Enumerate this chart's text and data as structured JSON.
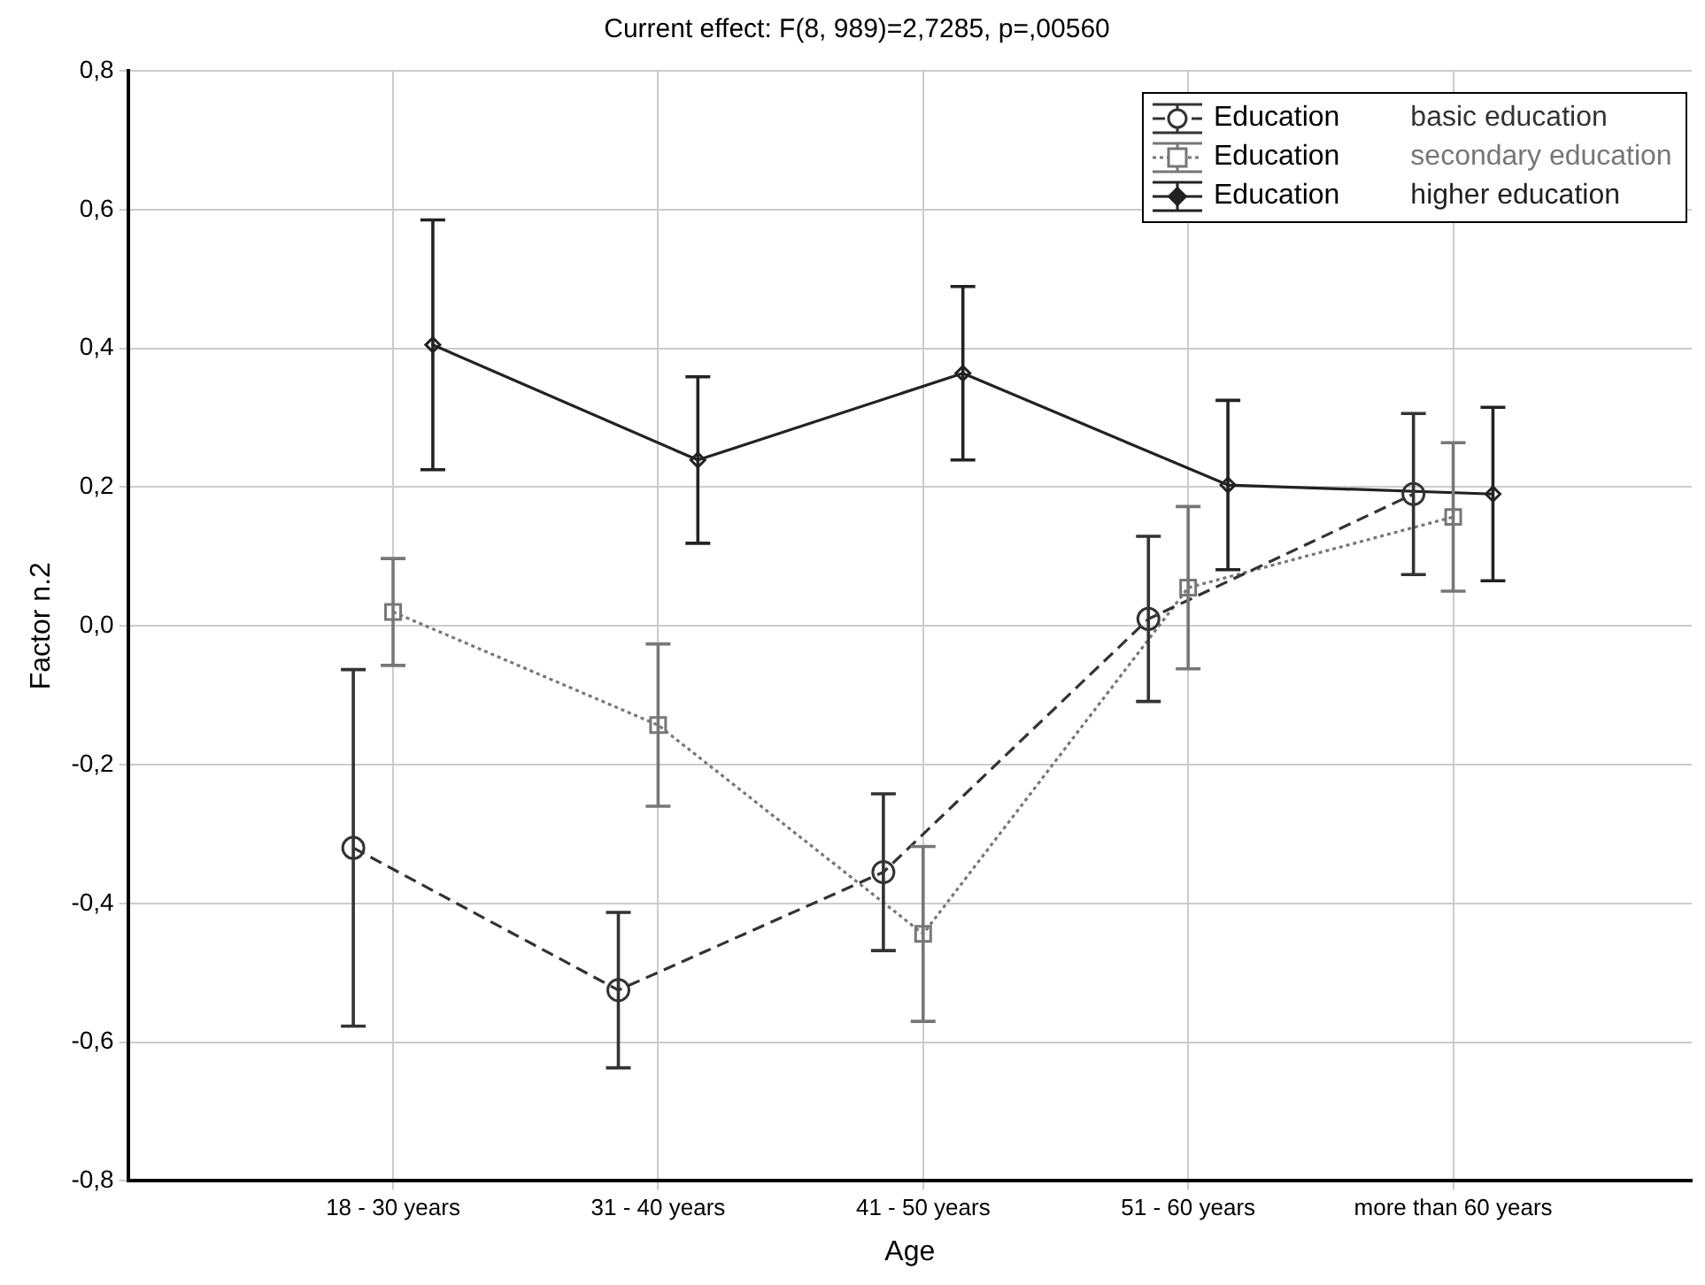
{
  "chart_data": {
    "type": "line",
    "title": "Current effect: F(8, 989)=2,7285, p=,00560",
    "xlabel": "Age",
    "ylabel": "Factor n.2",
    "legend_title": "Education",
    "categories": [
      "18 - 30 years",
      "31 - 40 years",
      "41 - 50 years",
      "51 - 60 years",
      "more than 60 years"
    ],
    "series": [
      {
        "name": "basic education",
        "color": "#333333",
        "marker": "circle",
        "line_style": "dashed",
        "values": [
          -0.32,
          -0.525,
          -0.355,
          0.01,
          0.19
        ],
        "errors": [
          0.257,
          0.112,
          0.113,
          0.119,
          0.116
        ]
      },
      {
        "name": "secondary education",
        "color": "#777777",
        "marker": "square",
        "line_style": "dotted",
        "values": [
          0.02,
          -0.143,
          -0.444,
          0.055,
          0.157
        ],
        "errors": [
          0.077,
          0.117,
          0.126,
          0.117,
          0.107
        ]
      },
      {
        "name": "higher education",
        "color": "#222222",
        "marker": "diamond",
        "line_style": "solid",
        "values": [
          0.405,
          0.239,
          0.364,
          0.203,
          0.19
        ],
        "errors": [
          0.18,
          0.12,
          0.125,
          0.122,
          0.125
        ]
      }
    ],
    "ylim": [
      -0.8,
      0.8
    ],
    "yticks": [
      {
        "value": -0.8,
        "label": "-0,8"
      },
      {
        "value": -0.6,
        "label": "-0,6"
      },
      {
        "value": -0.4,
        "label": "-0,4"
      },
      {
        "value": -0.2,
        "label": "-0,2"
      },
      {
        "value": 0,
        "label": "0,0"
      },
      {
        "value": 0.2,
        "label": "0,2"
      },
      {
        "value": 0.4,
        "label": "0,4"
      },
      {
        "value": 0.6,
        "label": "0,6"
      },
      {
        "value": 0.8,
        "label": "0,8"
      }
    ],
    "grid": true,
    "legend": "top right"
  }
}
